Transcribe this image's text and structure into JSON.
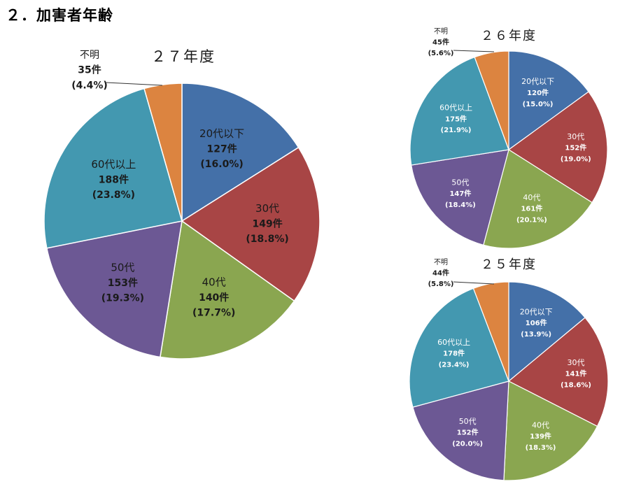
{
  "page": {
    "title": "２．加害者年齢"
  },
  "colors": {
    "20代以下": "#4470a8",
    "30代": "#a84545",
    "40代": "#8aa650",
    "50代": "#6c5894",
    "60代以上": "#4398b0",
    "不明": "#dc8440"
  },
  "chart_data": [
    {
      "type": "pie",
      "title": "２７年度",
      "slices": [
        {
          "name": "20代以下",
          "count": "127件",
          "pct": "(16.0%)",
          "value": 127
        },
        {
          "name": "30代",
          "count": "149件",
          "pct": "(18.8%)",
          "value": 149
        },
        {
          "name": "40代",
          "count": "140件",
          "pct": "(17.7%)",
          "value": 140
        },
        {
          "name": "50代",
          "count": "153件",
          "pct": "(19.3%)",
          "value": 153
        },
        {
          "name": "60代以上",
          "count": "188件",
          "pct": "(23.8%)",
          "value": 188
        },
        {
          "name": "不明",
          "count": "35件",
          "pct": "(4.4%)",
          "value": 35
        }
      ]
    },
    {
      "type": "pie",
      "title": "２６年度",
      "slices": [
        {
          "name": "20代以下",
          "count": "120件",
          "pct": "(15.0%)",
          "value": 120
        },
        {
          "name": "30代",
          "count": "152件",
          "pct": "(19.0%)",
          "value": 152
        },
        {
          "name": "40代",
          "count": "161件",
          "pct": "(20.1%)",
          "value": 161
        },
        {
          "name": "50代",
          "count": "147件",
          "pct": "(18.4%)",
          "value": 147
        },
        {
          "name": "60代以上",
          "count": "175件",
          "pct": "(21.9%)",
          "value": 175
        },
        {
          "name": "不明",
          "count": "45件",
          "pct": "(5.6%)",
          "value": 45
        }
      ]
    },
    {
      "type": "pie",
      "title": "２５年度",
      "slices": [
        {
          "name": "20代以下",
          "count": "106件",
          "pct": "(13.9%)",
          "value": 106
        },
        {
          "name": "30代",
          "count": "141件",
          "pct": "(18.6%)",
          "value": 141
        },
        {
          "name": "40代",
          "count": "139件",
          "pct": "(18.3%)",
          "value": 139
        },
        {
          "name": "50代",
          "count": "152件",
          "pct": "(20.0%)",
          "value": 152
        },
        {
          "name": "60代以上",
          "count": "178件",
          "pct": "(23.4%)",
          "value": 178
        },
        {
          "name": "不明",
          "count": "44件",
          "pct": "(5.8%)",
          "value": 44
        }
      ]
    }
  ]
}
